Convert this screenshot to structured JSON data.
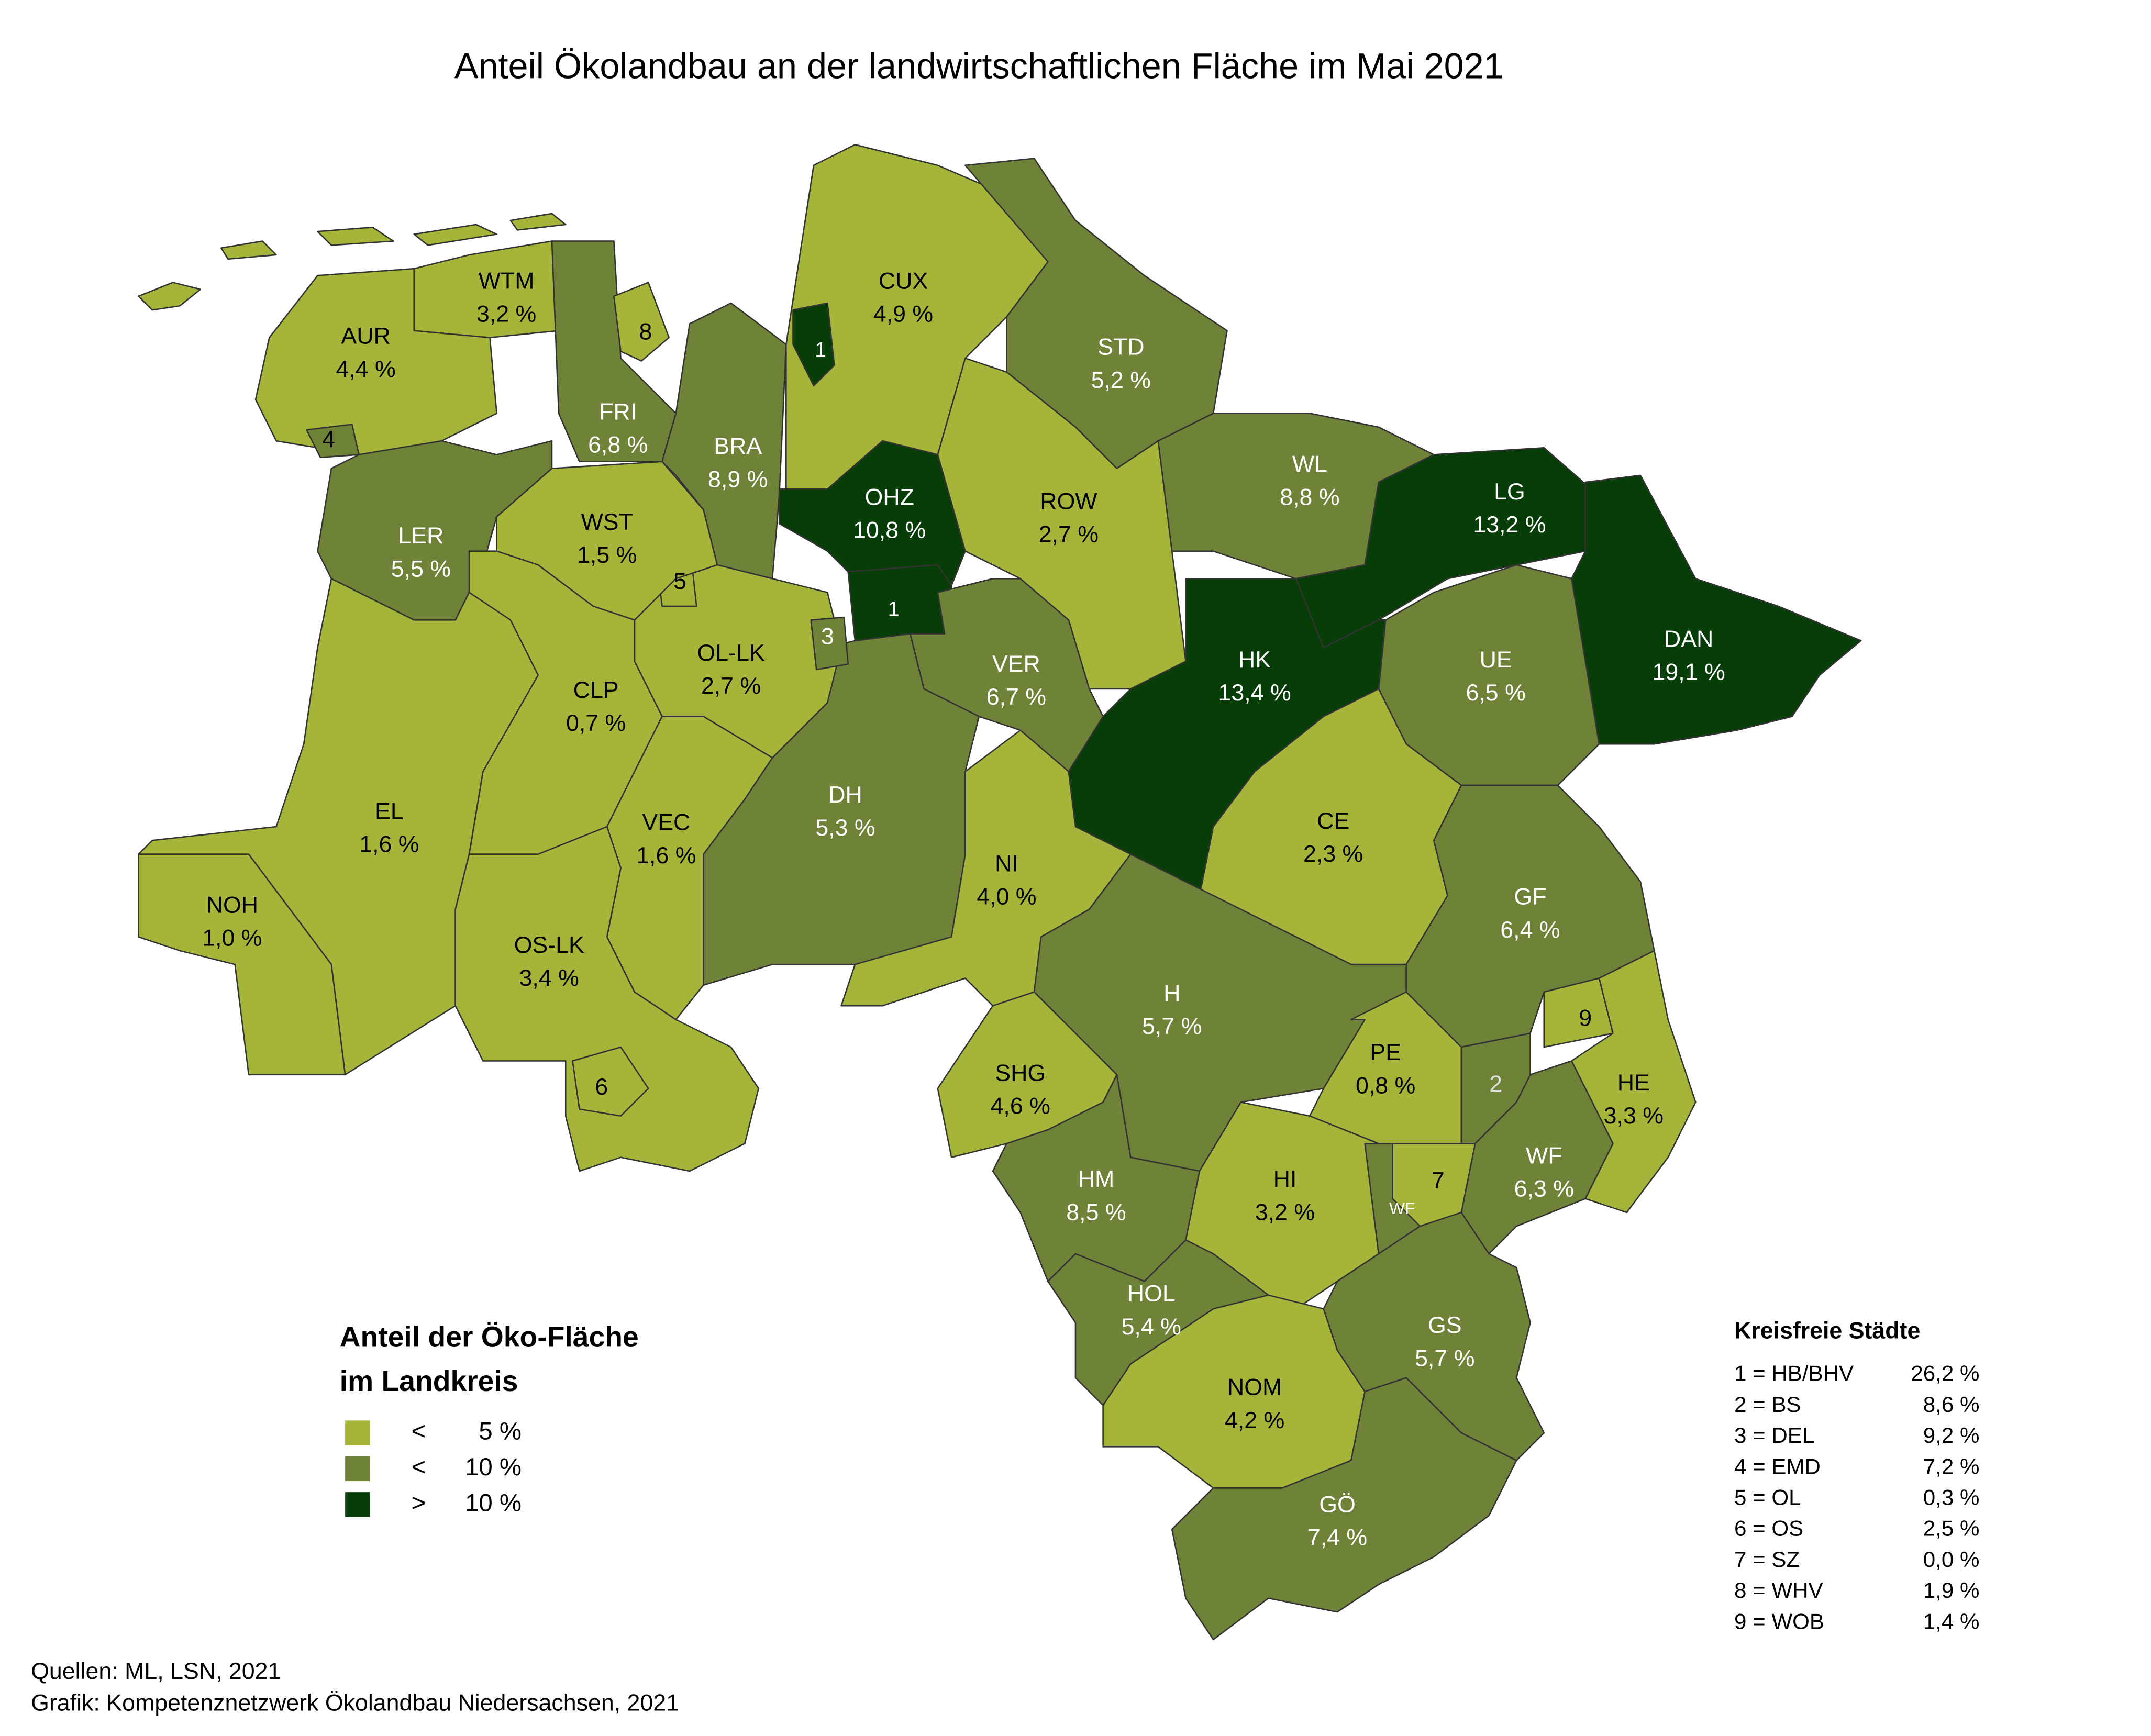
{
  "title": "Anteil Ökolandbau an der landwirtschaftlichen Fläche im Mai 2021",
  "districts": [
    {
      "code": "AUR",
      "value": "4,4 %"
    },
    {
      "code": "WTM",
      "value": "3,2 %"
    },
    {
      "code": "CUX",
      "value": "4,9 %"
    },
    {
      "code": "STD",
      "value": "5,2 %"
    },
    {
      "code": "FRI",
      "value": "6,8 %"
    },
    {
      "code": "BRA",
      "value": "8,9 %"
    },
    {
      "code": "LER",
      "value": "5,5 %"
    },
    {
      "code": "WST",
      "value": "1,5 %"
    },
    {
      "code": "OHZ",
      "value": "10,8 %"
    },
    {
      "code": "ROW",
      "value": "2,7 %"
    },
    {
      "code": "WL",
      "value": "8,8 %"
    },
    {
      "code": "LG",
      "value": "13,2 %"
    },
    {
      "code": "HK",
      "value": "13,4 %"
    },
    {
      "code": "DAN",
      "value": "19,1 %"
    },
    {
      "code": "UE",
      "value": "6,5 %"
    },
    {
      "code": "OL-LK",
      "value": "2,7 %"
    },
    {
      "code": "CLP",
      "value": "0,7 %"
    },
    {
      "code": "VER",
      "value": "6,7 %"
    },
    {
      "code": "DH",
      "value": "5,3 %"
    },
    {
      "code": "EL",
      "value": "1,6 %"
    },
    {
      "code": "VEC",
      "value": "1,6 %"
    },
    {
      "code": "CE",
      "value": "2,3 %"
    },
    {
      "code": "NI",
      "value": "4,0 %"
    },
    {
      "code": "GF",
      "value": "6,4 %"
    },
    {
      "code": "NOH",
      "value": "1,0 %"
    },
    {
      "code": "OS-LK",
      "value": "3,4 %"
    },
    {
      "code": "H",
      "value": "5,7 %"
    },
    {
      "code": "PE",
      "value": "0,8 %"
    },
    {
      "code": "SHG",
      "value": "4,6 %"
    },
    {
      "code": "HE",
      "value": "3,3 %"
    },
    {
      "code": "HM",
      "value": "8,5 %"
    },
    {
      "code": "WF",
      "value": "6,3 %"
    },
    {
      "code": "HI",
      "value": "3,2 %"
    },
    {
      "code": "HOL",
      "value": "5,4 %"
    },
    {
      "code": "GS",
      "value": "5,7 %"
    },
    {
      "code": "NOM",
      "value": "4,2 %"
    },
    {
      "code": "GÖ",
      "value": "7,4 %"
    }
  ],
  "map_markers": [
    "1",
    "1",
    "2",
    "3",
    "4",
    "5",
    "6",
    "7",
    "8",
    "9",
    "WF"
  ],
  "legend": {
    "title_lines": [
      "Anteil der Öko-Fläche",
      "im Landkreis"
    ],
    "items": [
      {
        "op": "<",
        "value": "5 %",
        "color": "#a5b53a"
      },
      {
        "op": "<",
        "value": "10 %",
        "color": "#6e8337"
      },
      {
        "op": ">",
        "value": "10 %",
        "color": "#073d07"
      }
    ]
  },
  "cities": {
    "title": "Kreisfreie Städte",
    "rows": [
      [
        "1 = HB/BHV",
        "26,2 %"
      ],
      [
        "2 = BS",
        "8,6 %"
      ],
      [
        "3 = DEL",
        "9,2 %"
      ],
      [
        "4 = EMD",
        "7,2 %"
      ],
      [
        "5 = OL",
        "0,3 %"
      ],
      [
        "6 = OS",
        "2,5 %"
      ],
      [
        "7 = SZ",
        "0,0 %"
      ],
      [
        "8 = WHV",
        "1,9 %"
      ],
      [
        "9 = WOB",
        "1,4 %"
      ]
    ]
  },
  "sources": [
    "Quellen: ML, LSN, 2021",
    "Grafik: Kompetenznetzwerk Ökolandbau Niedersachsen, 2021"
  ]
}
